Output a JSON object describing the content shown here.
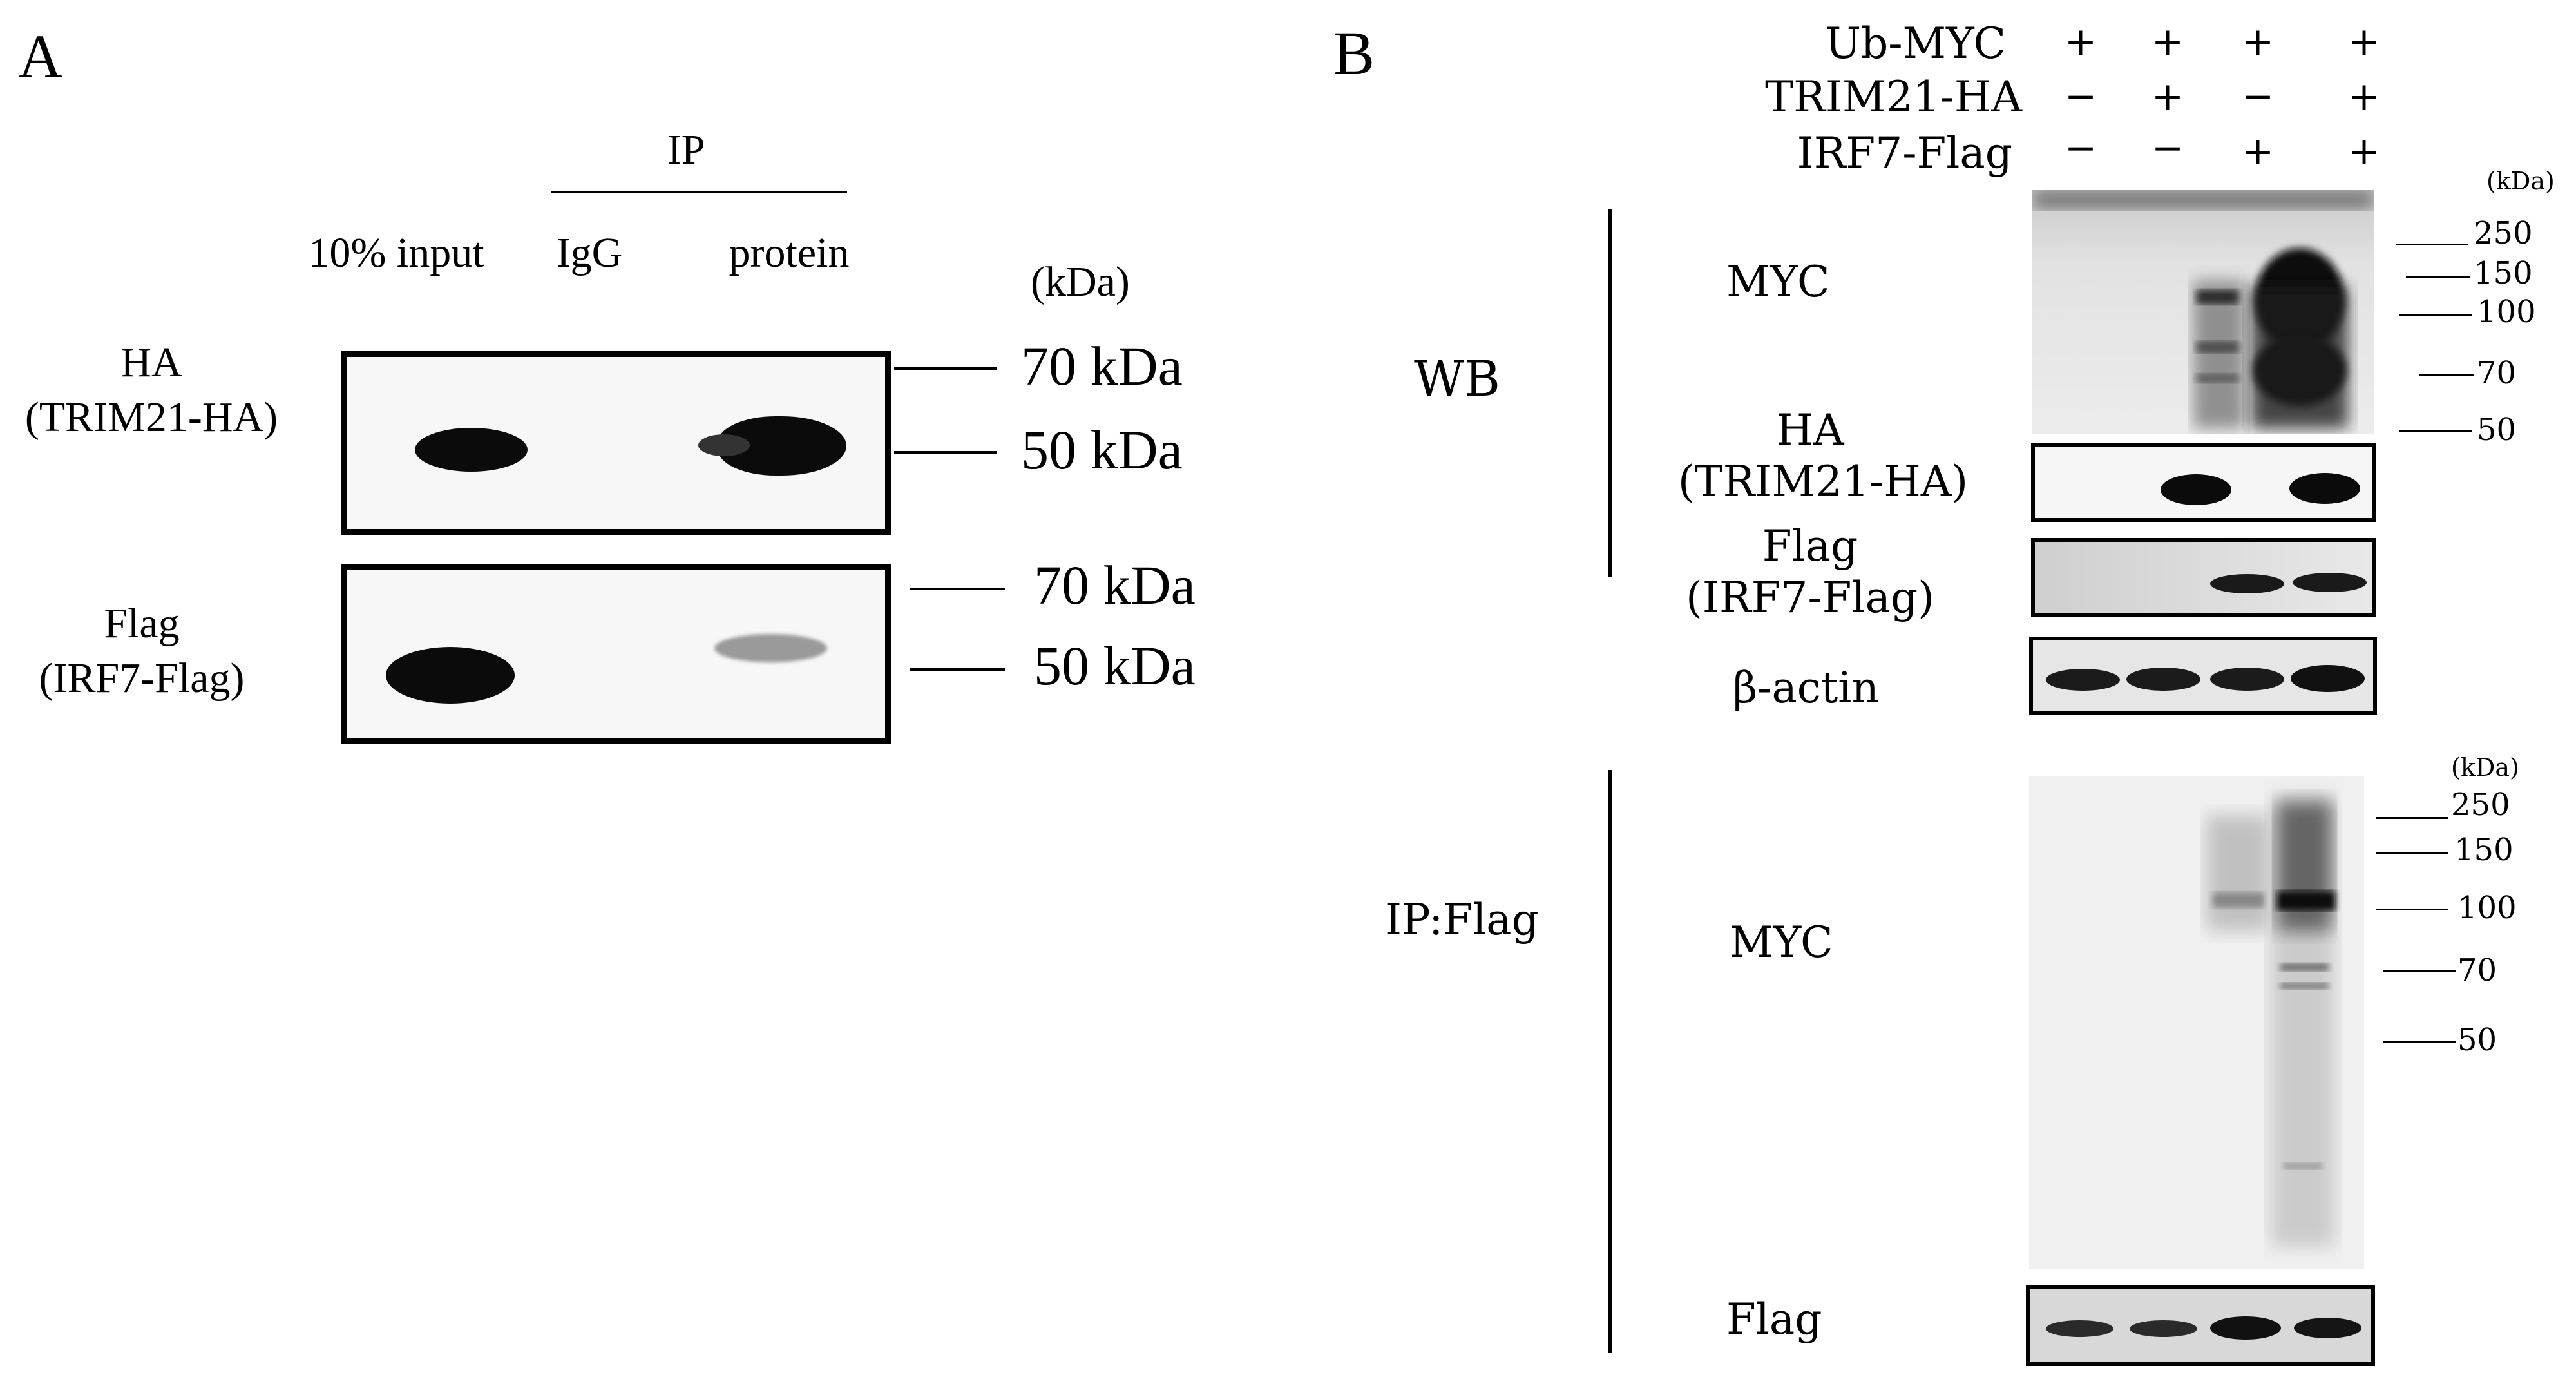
{
  "panel_a": {
    "letter": "A",
    "ip_header": "IP",
    "columns": [
      "10% input",
      "IgG",
      "protein"
    ],
    "kda_unit": "(kDa)",
    "rows": [
      {
        "label_line1": "HA",
        "label_line2": "(TRIM21-HA)",
        "markers": [
          "70 kDa",
          "50 kDa"
        ]
      },
      {
        "label_line1": "Flag",
        "label_line2": "(IRF7-Flag)",
        "markers": [
          "70 kDa",
          "50 kDa"
        ]
      }
    ]
  },
  "panel_b": {
    "letter": "B",
    "conditions": [
      {
        "name": "Ub-MYC",
        "signs": [
          "+",
          "+",
          "+",
          "+"
        ]
      },
      {
        "name": "TRIM21-HA",
        "signs": [
          "−",
          "+",
          "−",
          "+"
        ]
      },
      {
        "name": "IRF7-Flag",
        "signs": [
          "−",
          "−",
          "+",
          "+"
        ]
      }
    ],
    "wb_label": "WB",
    "ip_label": "IP:Flag",
    "kda_unit": "(kDa)",
    "wb_blots": {
      "myc": "MYC",
      "ha_line1": "HA",
      "ha_line2": "(TRIM21-HA)",
      "flag_line1": "Flag",
      "flag_line2": "(IRF7-Flag)",
      "actin": "β-actin",
      "markers": [
        "250",
        "150",
        "100",
        "70",
        "50"
      ]
    },
    "ip_blots": {
      "myc": "MYC",
      "flag": "Flag",
      "markers": [
        "250",
        "150",
        "100",
        "70",
        "50"
      ]
    }
  }
}
